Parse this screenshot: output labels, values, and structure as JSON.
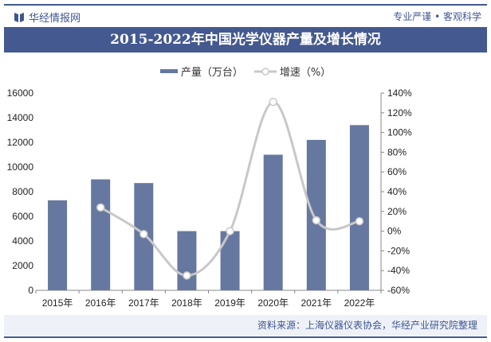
{
  "header": {
    "brand": "华经情报网",
    "slogan": "专业严谨 • 客观科学"
  },
  "title": "2015-2022年中国光学仪器产量及增长情况",
  "source": "资料来源：上海仪器仪表协会，华经产业研究院整理",
  "colors": {
    "bar": "#66789f",
    "line": "#c8c8c8",
    "brand": "#44598f"
  },
  "chart_data": {
    "type": "bar+line",
    "title": "2015-2022年中国光学仪器产量及增长情况",
    "categories": [
      "2015年",
      "2016年",
      "2017年",
      "2018年",
      "2019年",
      "2020年",
      "2021年",
      "2022年"
    ],
    "series": [
      {
        "name": "产量（万台）",
        "type": "bar",
        "axis": "left",
        "values": [
          7300,
          9000,
          8700,
          4800,
          4800,
          11000,
          12200,
          13400
        ]
      },
      {
        "name": "增速（%）",
        "type": "line",
        "axis": "right",
        "smooth": true,
        "values": [
          null,
          24,
          -3,
          -45,
          0,
          131,
          11,
          10
        ]
      }
    ],
    "left_axis": {
      "range": [
        0,
        16000
      ],
      "ticks": [
        "0",
        "2000",
        "4000",
        "6000",
        "8000",
        "10000",
        "12000",
        "14000",
        "16000"
      ]
    },
    "right_axis": {
      "range": [
        -60,
        140
      ],
      "ticks": [
        "-60%",
        "-40%",
        "-20%",
        "0%",
        "20%",
        "40%",
        "60%",
        "80%",
        "100%",
        "120%",
        "140%"
      ]
    },
    "legend_position": "top",
    "grid": false
  }
}
